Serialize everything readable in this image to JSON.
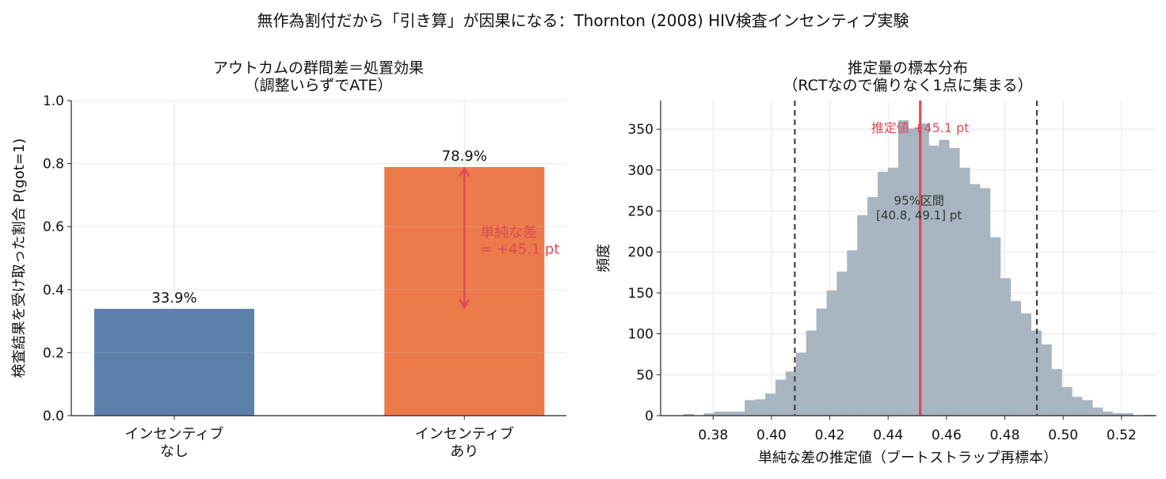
{
  "suptitle": "無作為割付だから「引き算」が因果になる：Thornton (2008) HIV検査インセンティブ実験",
  "colors": {
    "bar_none": "#5b80aa",
    "bar_incentive": "#ec7a4a",
    "annotation": "#dc4b5a",
    "hist": "#a9b5c1",
    "ci_line": "#444444",
    "grid": "#e6e6e6"
  },
  "chart_data": [
    {
      "type": "bar",
      "title_line1": "アウトカムの群間差＝処置効果",
      "title_line2": "（調整いらずでATE）",
      "ylabel": "検査結果を受け取った割合  P(got=1)",
      "categories": [
        {
          "line1": "インセンティブ",
          "line2": "なし"
        },
        {
          "line1": "インセンティブ",
          "line2": "あり"
        }
      ],
      "values": [
        0.339,
        0.789
      ],
      "value_labels": [
        "33.9%",
        "78.9%"
      ],
      "ylim": [
        0,
        1.0
      ],
      "yticks": [
        0.0,
        0.2,
        0.4,
        0.6,
        0.8,
        1.0
      ],
      "ytick_labels": [
        "0.0",
        "0.2",
        "0.4",
        "0.6",
        "0.8",
        "1.0"
      ],
      "annotation_line1": "単純な差",
      "annotation_line2": "= +45.1 pt",
      "arrow_from": 0.339,
      "arrow_to": 0.789,
      "grid": true
    },
    {
      "type": "histogram",
      "title_line1": "推定量の標本分布",
      "title_line2": "（RCTなので偏りなく1点に集まる）",
      "xlabel": "単純な差の推定値（ブートストラップ再標本）",
      "ylabel": "頻度",
      "xlim": [
        0.362,
        0.532
      ],
      "ylim": [
        0,
        385
      ],
      "xticks": [
        0.38,
        0.4,
        0.42,
        0.44,
        0.46,
        0.48,
        0.5,
        0.52
      ],
      "xtick_labels": [
        "0.38",
        "0.40",
        "0.42",
        "0.44",
        "0.46",
        "0.48",
        "0.50",
        "0.52"
      ],
      "yticks": [
        0,
        50,
        100,
        150,
        200,
        250,
        300,
        350
      ],
      "ytick_labels": [
        "0",
        "50",
        "100",
        "150",
        "200",
        "250",
        "300",
        "350"
      ],
      "bin_start": 0.3698,
      "bin_width": 0.003506,
      "counts": [
        2,
        0,
        3,
        5,
        5,
        5,
        19,
        20,
        27,
        44,
        54,
        77,
        104,
        131,
        153,
        176,
        202,
        245,
        267,
        298,
        303,
        361,
        351,
        357,
        330,
        337,
        327,
        303,
        283,
        278,
        218,
        168,
        140,
        125,
        104,
        87,
        57,
        35,
        23,
        19,
        10,
        5,
        3,
        3,
        0,
        1
      ],
      "estimate": 0.451,
      "estimate_label": "推定値 +45.1 pt",
      "ci": [
        0.408,
        0.491
      ],
      "ci_label_line1": "95%区間",
      "ci_label_line2": "[40.8, 49.1] pt",
      "grid": true
    }
  ]
}
